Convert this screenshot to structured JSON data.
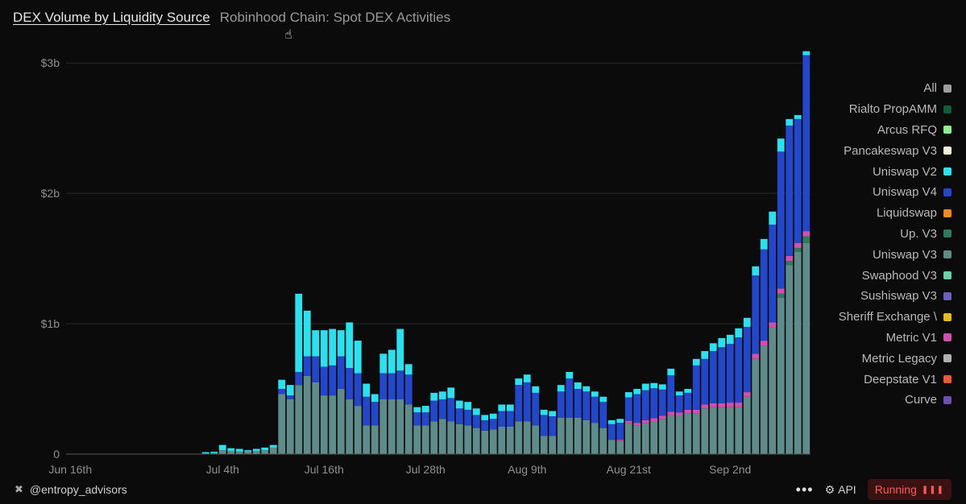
{
  "header": {
    "title": "DEX Volume by Liquidity Source",
    "subtitle": "Robinhood Chain: Spot DEX Activities"
  },
  "footer": {
    "brand": "@entropy_advisors",
    "more_label": "•••",
    "api_label": "API",
    "status_label": "Running"
  },
  "colors": {
    "background": "#0b0b0c",
    "uniswap_v3": "#5f8b8a",
    "uniswap_v4": "#2446c9",
    "uniswap_v2": "#2ee0ee",
    "up_v3": "#2f7a5c",
    "metric_v1": "#d050b0",
    "running": "#ff5a5a"
  },
  "chart_data": {
    "type": "bar",
    "stacked": true,
    "y_ticks": [
      "0",
      "$1b",
      "$2b",
      "$3b"
    ],
    "ylim": [
      0,
      3.1
    ],
    "y_unit": "billion USD",
    "x_ticks": [
      "Jun 16th",
      "Jul 4th",
      "Jul 16th",
      "Jul 28th",
      "Aug 9th",
      "Aug 21st",
      "Sep 2nd"
    ],
    "x_tick_positions": [
      0,
      18,
      30,
      42,
      54,
      66,
      78
    ],
    "legend": [
      {
        "name": "All",
        "color": "#9e9e9e"
      },
      {
        "name": "Rialto PropAMM",
        "color": "#0f5c38"
      },
      {
        "name": "Arcus RFQ",
        "color": "#8ef08e"
      },
      {
        "name": "Pancakeswap V3",
        "color": "#f2f2da"
      },
      {
        "name": "Uniswap V2",
        "color": "#2ee0ee"
      },
      {
        "name": "Uniswap V4",
        "color": "#2446c9"
      },
      {
        "name": "Liquidswap",
        "color": "#f08a24"
      },
      {
        "name": "Up. V3",
        "color": "#2f7a5c"
      },
      {
        "name": "Uniswap V3",
        "color": "#5f8b8a"
      },
      {
        "name": "Swaphood V3",
        "color": "#6fcfa6"
      },
      {
        "name": "Sushiswap V3",
        "color": "#6b5fb8"
      },
      {
        "name": "Sheriff Exchange \\",
        "color": "#e8b820"
      },
      {
        "name": "Metric V1",
        "color": "#d050b0"
      },
      {
        "name": "Metric Legacy",
        "color": "#b0b0b0"
      },
      {
        "name": "Deepstate V1",
        "color": "#e85a3a"
      },
      {
        "name": "Curve",
        "color": "#6c4fb0"
      }
    ],
    "series": [
      {
        "name": "Uniswap V3",
        "color": "#5f8b8a",
        "values": [
          0,
          0,
          0,
          0,
          0,
          0,
          0,
          0,
          0,
          0,
          0,
          0,
          0,
          0,
          0,
          0,
          0.005,
          0.008,
          0.03,
          0.025,
          0.02,
          0.02,
          0.025,
          0.03,
          0.05,
          0.46,
          0.42,
          0.53,
          0.6,
          0.55,
          0.45,
          0.45,
          0.5,
          0.42,
          0.37,
          0.22,
          0.22,
          0.42,
          0.42,
          0.42,
          0.38,
          0.22,
          0.22,
          0.25,
          0.27,
          0.25,
          0.23,
          0.22,
          0.2,
          0.18,
          0.19,
          0.21,
          0.21,
          0.25,
          0.25,
          0.22,
          0.14,
          0.14,
          0.28,
          0.28,
          0.28,
          0.26,
          0.24,
          0.2,
          0.11,
          0.1,
          0.24,
          0.22,
          0.24,
          0.25,
          0.27,
          0.3,
          0.29,
          0.31,
          0.31,
          0.35,
          0.36,
          0.36,
          0.36,
          0.36,
          0.44,
          0.73,
          0.83,
          0.97,
          1.2,
          1.45,
          1.55,
          1.62
        ]
      },
      {
        "name": "Up. V3",
        "color": "#2f7a5c",
        "values": [
          0,
          0,
          0,
          0,
          0,
          0,
          0,
          0,
          0,
          0,
          0,
          0,
          0,
          0,
          0,
          0,
          0,
          0,
          0,
          0,
          0,
          0,
          0,
          0,
          0,
          0,
          0,
          0,
          0,
          0,
          0,
          0,
          0,
          0,
          0,
          0,
          0,
          0,
          0,
          0,
          0,
          0,
          0,
          0,
          0,
          0,
          0,
          0,
          0,
          0,
          0,
          0,
          0,
          0,
          0,
          0,
          0,
          0,
          0,
          0,
          0,
          0,
          0,
          0,
          0,
          0,
          0,
          0,
          0,
          0,
          0,
          0,
          0,
          0,
          0,
          0,
          0,
          0,
          0,
          0,
          0,
          0,
          0,
          0,
          0.03,
          0.03,
          0.03,
          0.05
        ]
      },
      {
        "name": "Metric V1",
        "color": "#d050b0",
        "values": [
          0,
          0,
          0,
          0,
          0,
          0,
          0,
          0,
          0,
          0,
          0,
          0,
          0,
          0,
          0,
          0,
          0,
          0,
          0,
          0,
          0,
          0,
          0,
          0,
          0,
          0,
          0,
          0,
          0,
          0,
          0,
          0,
          0,
          0,
          0,
          0,
          0,
          0,
          0,
          0,
          0,
          0,
          0,
          0,
          0,
          0,
          0,
          0,
          0,
          0,
          0,
          0,
          0,
          0,
          0,
          0,
          0,
          0,
          0,
          0,
          0,
          0,
          0,
          0,
          0,
          0.01,
          0.015,
          0.02,
          0.02,
          0.025,
          0.025,
          0.025,
          0.03,
          0.03,
          0.03,
          0.03,
          0.03,
          0.03,
          0.035,
          0.035,
          0.035,
          0.04,
          0.04,
          0.04,
          0.04,
          0.04,
          0.04,
          0.04
        ]
      },
      {
        "name": "Uniswap V4",
        "color": "#2446c9",
        "values": [
          0,
          0,
          0,
          0,
          0,
          0,
          0,
          0,
          0,
          0,
          0,
          0,
          0,
          0,
          0,
          0,
          0,
          0,
          0,
          0,
          0,
          0,
          0,
          0,
          0,
          0.04,
          0.03,
          0.1,
          0.15,
          0.2,
          0.22,
          0.23,
          0.25,
          0.24,
          0.25,
          0.22,
          0.18,
          0.2,
          0.2,
          0.22,
          0.23,
          0.1,
          0.1,
          0.16,
          0.15,
          0.18,
          0.12,
          0.12,
          0.1,
          0.08,
          0.08,
          0.12,
          0.12,
          0.28,
          0.3,
          0.25,
          0.16,
          0.15,
          0.2,
          0.3,
          0.22,
          0.22,
          0.2,
          0.2,
          0.12,
          0.13,
          0.18,
          0.22,
          0.23,
          0.23,
          0.2,
          0.28,
          0.13,
          0.13,
          0.34,
          0.35,
          0.4,
          0.43,
          0.45,
          0.5,
          0.5,
          0.6,
          0.7,
          0.75,
          1.05,
          1.0,
          0.95,
          1.35
        ]
      },
      {
        "name": "Uniswap V2",
        "color": "#2ee0ee",
        "values": [
          0,
          0,
          0,
          0,
          0,
          0,
          0,
          0,
          0,
          0,
          0,
          0,
          0,
          0,
          0,
          0,
          0.01,
          0.01,
          0.04,
          0.02,
          0.02,
          0.01,
          0.015,
          0.02,
          0.02,
          0.07,
          0.08,
          0.6,
          0.35,
          0.2,
          0.28,
          0.28,
          0.2,
          0.35,
          0.25,
          0.1,
          0.06,
          0.15,
          0.18,
          0.32,
          0.08,
          0.04,
          0.05,
          0.06,
          0.06,
          0.08,
          0.06,
          0.06,
          0.05,
          0.04,
          0.04,
          0.05,
          0.05,
          0.05,
          0.06,
          0.05,
          0.04,
          0.04,
          0.05,
          0.05,
          0.05,
          0.04,
          0.04,
          0.04,
          0.03,
          0.03,
          0.04,
          0.04,
          0.05,
          0.04,
          0.04,
          0.05,
          0.03,
          0.03,
          0.05,
          0.06,
          0.06,
          0.07,
          0.07,
          0.07,
          0.07,
          0.07,
          0.08,
          0.1,
          0.1,
          0.05,
          0.03,
          0.03
        ]
      }
    ]
  }
}
